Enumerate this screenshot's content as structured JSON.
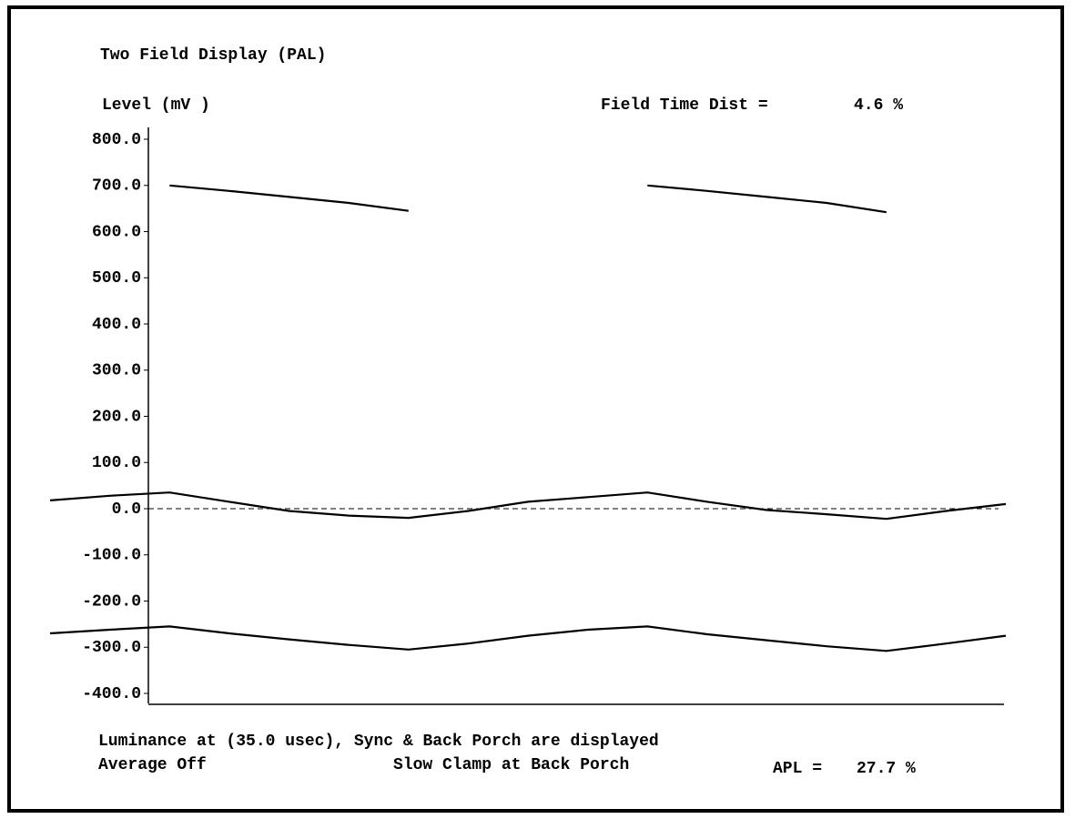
{
  "chart_data": {
    "type": "line",
    "title": "Two Field Display (PAL)",
    "y_label": "Level (mV )",
    "annotations": [
      "Field Time Dist =",
      "4.6 %",
      "Luminance at (35.0 usec), Sync & Back Porch are displayed",
      "Average Off",
      "Slow Clamp at Back Porch",
      "APL =",
      "27.7 %"
    ],
    "categories": [
      null,
      null,
      null,
      null,
      null,
      null,
      null,
      null,
      null,
      null,
      null,
      null,
      null,
      null,
      null,
      null,
      null
    ],
    "series": [
      {
        "color": "#000000",
        "values": [
          null,
          null,
          700,
          688,
          675,
          662,
          645,
          null,
          null,
          null,
          700,
          688,
          675,
          662,
          642,
          null,
          null
        ]
      },
      {
        "color": "#000000",
        "values": [
          18,
          28,
          35,
          15,
          -5,
          -15,
          -20,
          -5,
          15,
          25,
          35,
          15,
          -3,
          -12,
          -22,
          -5,
          10
        ]
      },
      {
        "color": "#000000",
        "values": [
          -270,
          -262,
          -255,
          -270,
          -283,
          -295,
          -305,
          -292,
          -275,
          -262,
          -255,
          -272,
          -285,
          -298,
          -308,
          -292,
          -275
        ]
      }
    ],
    "reference_line": 0,
    "ylim": [
      -400,
      800
    ],
    "yticks": [
      {
        "value": 800,
        "label": "800.0"
      },
      {
        "value": 700,
        "label": "700.0"
      },
      {
        "value": 600,
        "label": "600.0"
      },
      {
        "value": 500,
        "label": "500.0"
      },
      {
        "value": 400,
        "label": "400.0"
      },
      {
        "value": 300,
        "label": "300.0"
      },
      {
        "value": 200,
        "label": "200.0"
      },
      {
        "value": 100,
        "label": "100.0"
      },
      {
        "value": 0,
        "label": "0.0"
      },
      {
        "value": -100,
        "label": "-100.0"
      },
      {
        "value": -200,
        "label": "-200.0"
      },
      {
        "value": -300,
        "label": "-300.0"
      },
      {
        "value": -400,
        "label": "-400.0"
      }
    ]
  }
}
